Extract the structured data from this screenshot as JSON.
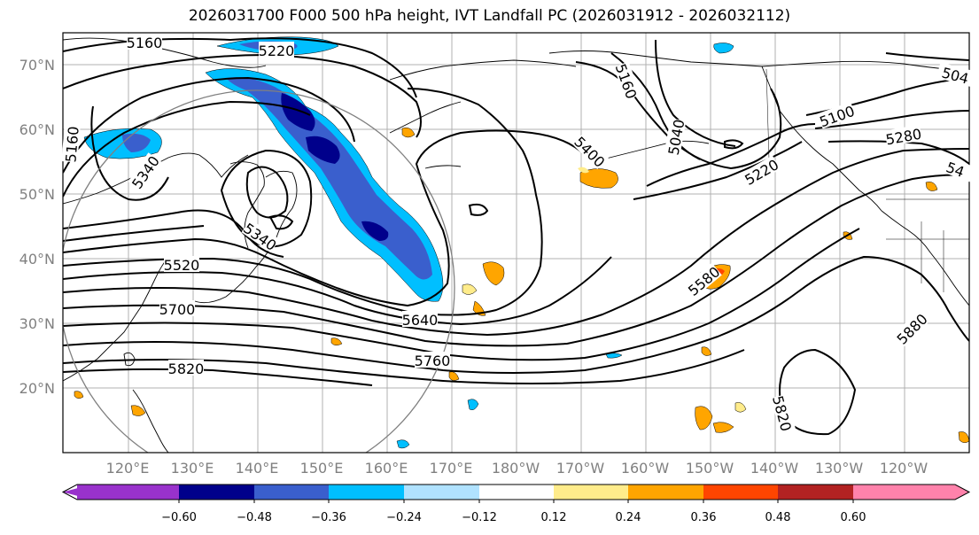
{
  "title": "2026031700 F000 500 hPa height, IVT Landfall PC (2026031912 - 2026032112)",
  "lat_labels": [
    "70°N",
    "60°N",
    "50°N",
    "40°N",
    "30°N",
    "20°N"
  ],
  "lon_labels": [
    "120°E",
    "130°E",
    "140°E",
    "150°E",
    "160°E",
    "170°E",
    "180°W",
    "170°W",
    "160°W",
    "150°W",
    "140°W",
    "130°W",
    "120°W"
  ],
  "contour_labels": [
    "5160",
    "5220",
    "5160",
    "5340",
    "5400",
    "5040",
    "5100",
    "5280",
    "54",
    "504",
    "5220",
    "5160",
    "5340",
    "5520",
    "5700",
    "5820",
    "5640",
    "5760",
    "5580",
    "5880",
    "5820"
  ],
  "colorbar": {
    "ticks": [
      "−0.60",
      "−0.48",
      "−0.36",
      "−0.24",
      "−0.12",
      "0.12",
      "0.24",
      "0.36",
      "0.48",
      "0.60"
    ],
    "colors": [
      "#9932CC",
      "#00008B",
      "#3A5FCD",
      "#00BFFF",
      "#B0E2FF",
      "#FFFFFF",
      "#FFEC8B",
      "#FFA500",
      "#FF4500",
      "#B22222",
      "#FF82AB"
    ]
  }
}
